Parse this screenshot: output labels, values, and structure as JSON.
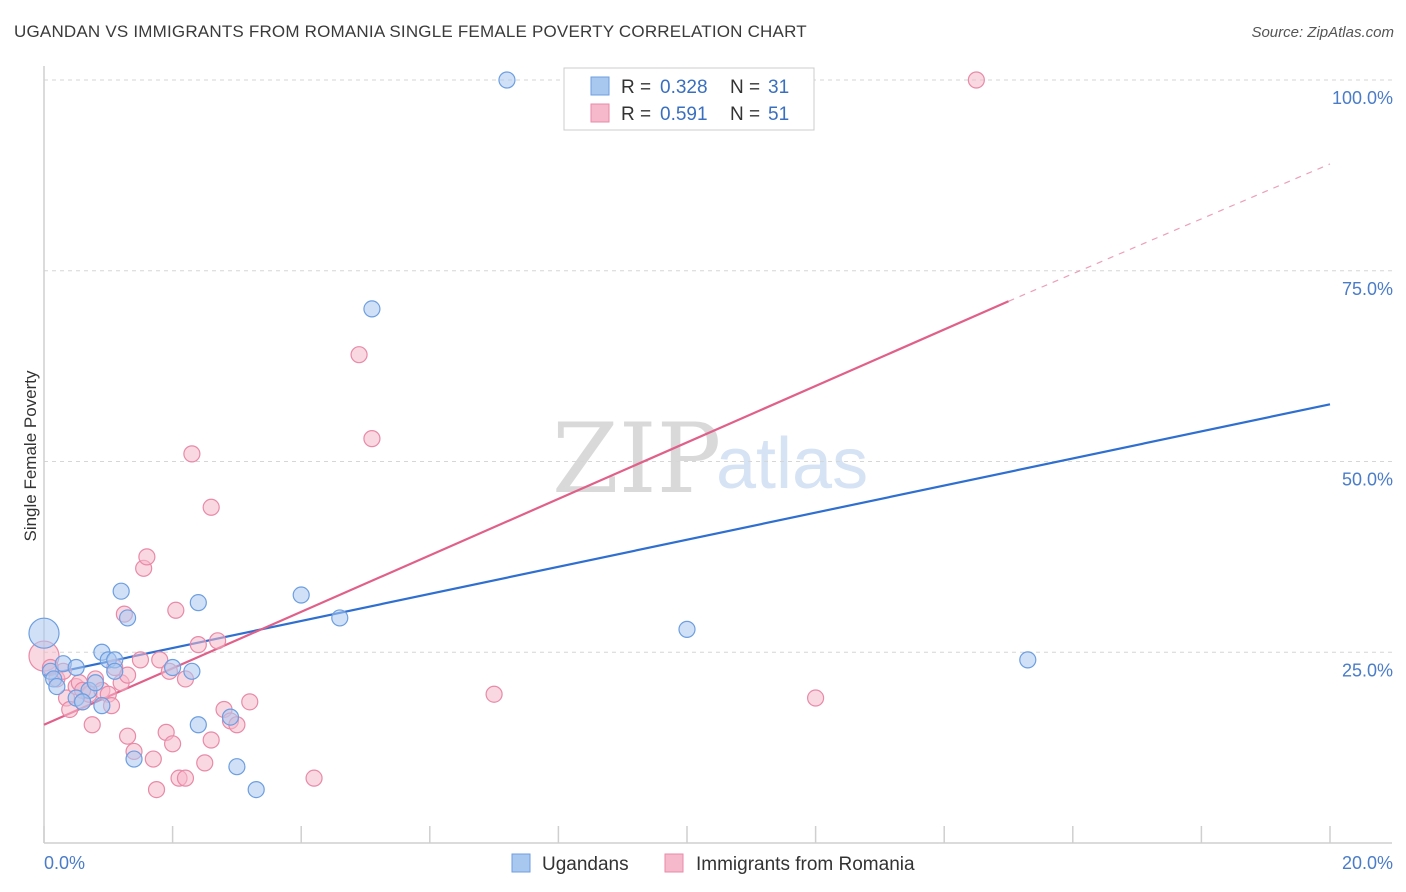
{
  "header": {
    "title": "UGANDAN VS IMMIGRANTS FROM ROMANIA SINGLE FEMALE POVERTY CORRELATION CHART",
    "source": "Source: ZipAtlas.com"
  },
  "watermark": {
    "zip": "ZIP",
    "atlas": "atlas"
  },
  "colors": {
    "blue_fill": "#a9c8f0",
    "blue_stroke": "#6d9ee0",
    "blue_line": "#2f6fd0",
    "pink_fill": "#f6b8cb",
    "pink_stroke": "#e88aa8",
    "pink_line": "#e0608a",
    "grid": "#d6d6d6",
    "tick_text": "#4a7cc7"
  },
  "legend": {
    "rows": [
      {
        "r_label": "R =",
        "r_value": "0.328",
        "n_label": "N =",
        "n_value": "31"
      },
      {
        "r_label": "R =",
        "r_value": "0.591",
        "n_label": "N =",
        "n_value": "51"
      }
    ]
  },
  "chart_data": {
    "type": "scatter",
    "title": "UGANDAN VS IMMIGRANTS FROM ROMANIA SINGLE FEMALE POVERTY CORRELATION CHART",
    "xlabel": "",
    "ylabel": "Single Female Poverty",
    "xlim": [
      0,
      20
    ],
    "ylim": [
      0,
      100
    ],
    "x_tick_labels": [
      "0.0%",
      "20.0%"
    ],
    "y_ticks": [
      25,
      50,
      75,
      100
    ],
    "y_tick_labels": [
      "25.0%",
      "50.0%",
      "75.0%",
      "100.0%"
    ],
    "grid": true,
    "legend_position": "top-center",
    "series": [
      {
        "name": "Ugandans",
        "r": 0.328,
        "n": 31,
        "trend": {
          "x0": 0,
          "y0": 22.0,
          "x1": 20,
          "y1": 57.5
        },
        "points": [
          [
            0.0,
            27.5
          ],
          [
            0.1,
            22.5
          ],
          [
            0.15,
            21.5
          ],
          [
            0.3,
            23.5
          ],
          [
            0.5,
            23.0
          ],
          [
            0.7,
            20.0
          ],
          [
            0.9,
            18.0
          ],
          [
            0.5,
            19.0
          ],
          [
            0.8,
            21.0
          ],
          [
            0.9,
            25.0
          ],
          [
            1.0,
            24.0
          ],
          [
            1.1,
            24.0
          ],
          [
            1.1,
            22.5
          ],
          [
            1.2,
            33.0
          ],
          [
            1.3,
            29.5
          ],
          [
            1.4,
            11.0
          ],
          [
            2.0,
            23.0
          ],
          [
            2.3,
            22.5
          ],
          [
            2.4,
            31.5
          ],
          [
            2.4,
            15.5
          ],
          [
            2.9,
            16.5
          ],
          [
            3.0,
            10.0
          ],
          [
            3.3,
            7.0
          ],
          [
            4.0,
            32.5
          ],
          [
            4.6,
            29.5
          ],
          [
            5.1,
            70.0
          ],
          [
            7.2,
            100.0
          ],
          [
            10.0,
            28.0
          ],
          [
            15.3,
            24.0
          ],
          [
            0.2,
            20.5
          ],
          [
            0.6,
            18.5
          ]
        ]
      },
      {
        "name": "Immigrants from Romania",
        "r": 0.591,
        "n": 51,
        "trend": {
          "x0": 0,
          "y0": 15.5,
          "x1": 15,
          "y1": 71.0,
          "dash_x1": 20,
          "dash_y1": 89.0
        },
        "points": [
          [
            0.0,
            24.5
          ],
          [
            0.1,
            23.0
          ],
          [
            0.2,
            21.5
          ],
          [
            0.3,
            22.5
          ],
          [
            0.35,
            19.0
          ],
          [
            0.4,
            17.5
          ],
          [
            0.5,
            20.5
          ],
          [
            0.55,
            21.0
          ],
          [
            0.6,
            18.5
          ],
          [
            0.7,
            19.5
          ],
          [
            0.75,
            15.5
          ],
          [
            0.8,
            21.5
          ],
          [
            0.9,
            20.0
          ],
          [
            1.0,
            19.5
          ],
          [
            1.05,
            18.0
          ],
          [
            1.1,
            23.0
          ],
          [
            1.2,
            21.0
          ],
          [
            1.25,
            30.0
          ],
          [
            1.3,
            22.0
          ],
          [
            1.3,
            14.0
          ],
          [
            1.4,
            12.0
          ],
          [
            1.5,
            24.0
          ],
          [
            1.55,
            36.0
          ],
          [
            1.6,
            37.5
          ],
          [
            1.7,
            11.0
          ],
          [
            1.75,
            7.0
          ],
          [
            1.8,
            24.0
          ],
          [
            1.9,
            14.5
          ],
          [
            1.95,
            22.5
          ],
          [
            2.0,
            13.0
          ],
          [
            2.05,
            30.5
          ],
          [
            2.1,
            8.5
          ],
          [
            2.2,
            8.5
          ],
          [
            2.2,
            21.5
          ],
          [
            2.3,
            51.0
          ],
          [
            2.4,
            26.0
          ],
          [
            2.5,
            10.5
          ],
          [
            2.6,
            44.0
          ],
          [
            2.6,
            13.5
          ],
          [
            2.7,
            26.5
          ],
          [
            2.8,
            17.5
          ],
          [
            2.9,
            16.0
          ],
          [
            3.0,
            15.5
          ],
          [
            3.2,
            18.5
          ],
          [
            4.2,
            8.5
          ],
          [
            4.9,
            64.0
          ],
          [
            5.1,
            53.0
          ],
          [
            7.0,
            19.5
          ],
          [
            12.0,
            19.0
          ],
          [
            14.5,
            100.0
          ],
          [
            0.6,
            20.0
          ]
        ]
      }
    ]
  },
  "bottom_legend": {
    "items": [
      {
        "label": "Ugandans"
      },
      {
        "label": "Immigrants from Romania"
      }
    ]
  }
}
